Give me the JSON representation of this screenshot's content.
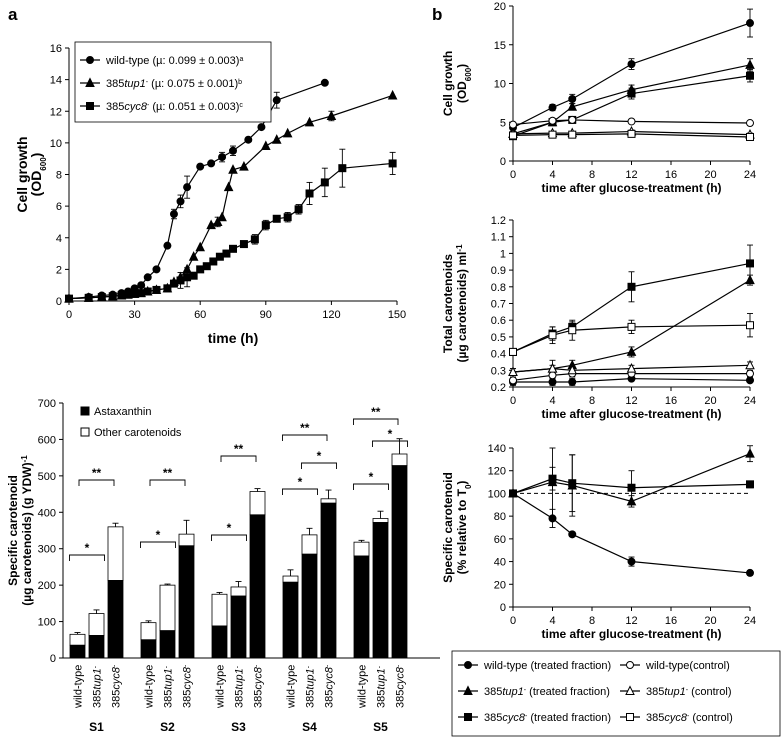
{
  "panel_labels": {
    "a": "a",
    "b": "b"
  },
  "chart_data": [
    {
      "id": "a_growth",
      "type": "line",
      "ylabel": "Cell growth",
      "ylabel2": "(OD600)",
      "xlabel": "time (h)",
      "xlim": [
        0,
        150
      ],
      "ylim": [
        0,
        16
      ],
      "xticks": [
        0,
        30,
        60,
        90,
        120,
        150
      ],
      "yticks": [
        0,
        2,
        4,
        6,
        8,
        10,
        12,
        14,
        16
      ],
      "series": [
        {
          "name": "wild-type",
          "legend": "wild-type (µ: 0.099 ± 0.003)",
          "sup": "a",
          "marker": "circle",
          "x": [
            0,
            9,
            15,
            20,
            24,
            27,
            30,
            33,
            36,
            40,
            45,
            48,
            51,
            54,
            60,
            65,
            70,
            75,
            82,
            88,
            95,
            117
          ],
          "y": [
            0.15,
            0.25,
            0.35,
            0.4,
            0.5,
            0.6,
            0.8,
            1.0,
            1.5,
            2.0,
            3.5,
            5.5,
            6.3,
            7.2,
            8.5,
            8.7,
            9.1,
            9.5,
            10.2,
            11.0,
            12.7,
            13.8
          ],
          "err": [
            0,
            0,
            0,
            0,
            0,
            0,
            0,
            0,
            0,
            0,
            0,
            0.3,
            0.4,
            0.7,
            0,
            0,
            0.3,
            0.3,
            0,
            0,
            0.5,
            0
          ]
        },
        {
          "name": "385tup1",
          "legend": "385tup1- (µ: 0.075 ± 0.001)",
          "sup": "b",
          "marker": "triangle",
          "x": [
            0,
            9,
            15,
            20,
            24,
            27,
            30,
            33,
            36,
            40,
            45,
            48,
            51,
            54,
            57,
            60,
            65,
            68,
            70,
            73,
            75,
            80,
            90,
            95,
            100,
            110,
            120,
            148
          ],
          "y": [
            0.15,
            0.2,
            0.25,
            0.3,
            0.35,
            0.4,
            0.45,
            0.5,
            0.6,
            0.7,
            0.8,
            1.2,
            1.5,
            2.0,
            2.8,
            3.4,
            4.8,
            5.0,
            5.3,
            7.2,
            8.3,
            8.5,
            9.8,
            10.2,
            10.6,
            11.3,
            11.7,
            13.0
          ],
          "err": [
            0,
            0,
            0,
            0,
            0,
            0,
            0,
            0,
            0,
            0,
            0,
            0,
            0,
            0,
            0,
            0,
            0,
            0.3,
            0,
            0,
            0,
            0,
            0,
            0,
            0,
            0,
            0.3,
            0
          ]
        },
        {
          "name": "385cyc8",
          "legend": "385cyc8- (µ: 0.051 ± 0.003)",
          "sup": "c",
          "marker": "square",
          "x": [
            0,
            9,
            15,
            20,
            24,
            27,
            30,
            33,
            36,
            40,
            45,
            48,
            51,
            54,
            57,
            60,
            63,
            66,
            69,
            72,
            75,
            80,
            85,
            90,
            95,
            100,
            105,
            110,
            117,
            125,
            148
          ],
          "y": [
            0.15,
            0.2,
            0.25,
            0.3,
            0.35,
            0.4,
            0.45,
            0.5,
            0.6,
            0.7,
            0.8,
            1.1,
            1.3,
            1.5,
            1.6,
            2.0,
            2.2,
            2.5,
            2.8,
            3.0,
            3.3,
            3.6,
            3.9,
            4.8,
            5.2,
            5.3,
            5.8,
            6.8,
            7.5,
            8.4,
            8.7
          ],
          "err": [
            0,
            0,
            0,
            0,
            0,
            0,
            0,
            0,
            0,
            0,
            0,
            0,
            0.5,
            0.6,
            0,
            0,
            0,
            0,
            0,
            0,
            0,
            0,
            0.3,
            0.3,
            0,
            0.3,
            0.3,
            0.7,
            0.9,
            1.2,
            0.7
          ]
        }
      ]
    },
    {
      "id": "a_carotenoid",
      "type": "bar",
      "stacked": true,
      "ylabel": "Specific carotenoid",
      "ylabel2": "(µg carotenoids) (g YDW)-1",
      "ylim": [
        0,
        700
      ],
      "yticks": [
        0,
        100,
        200,
        300,
        400,
        500,
        600,
        700
      ],
      "legend": [
        "Astaxanthin",
        "Other carotenoids"
      ],
      "strains": [
        "wild-type",
        "385tup1-",
        "385cyc8-"
      ],
      "groups": [
        {
          "label": "S1",
          "astaxanthin": [
            35,
            62,
            213
          ],
          "total": [
            65,
            122,
            360
          ],
          "err": [
            5,
            10,
            10
          ]
        },
        {
          "label": "S2",
          "astaxanthin": [
            50,
            75,
            308
          ],
          "total": [
            97,
            200,
            340
          ],
          "err": [
            5,
            3,
            38
          ]
        },
        {
          "label": "S3",
          "astaxanthin": [
            88,
            170,
            393
          ],
          "total": [
            175,
            195,
            457
          ],
          "err": [
            5,
            15,
            8
          ]
        },
        {
          "label": "S4",
          "astaxanthin": [
            208,
            285,
            425
          ],
          "total": [
            225,
            338,
            437
          ],
          "err": [
            17,
            18,
            24
          ]
        },
        {
          "label": "S5",
          "astaxanthin": [
            280,
            372,
            528
          ],
          "total": [
            318,
            383,
            560
          ],
          "err": [
            5,
            20,
            42
          ]
        }
      ],
      "significance": [
        "*",
        "**",
        "*",
        "**",
        "*",
        "**",
        "*",
        "*",
        "**",
        "*",
        "*",
        "**"
      ]
    },
    {
      "id": "b_growth",
      "type": "line",
      "ylabel": "Cell growth",
      "ylabel2": "(OD600)",
      "xlabel": "time after glucose-treatment (h)",
      "xlim": [
        0,
        24
      ],
      "ylim": [
        0,
        20
      ],
      "xticks": [
        0,
        4,
        8,
        12,
        16,
        20,
        24
      ],
      "yticks": [
        0,
        5,
        10,
        15,
        20
      ],
      "x": [
        0,
        4,
        6,
        12,
        24
      ],
      "series": [
        {
          "name": "wild-type (treated fraction)",
          "marker": "circle",
          "filled": true,
          "y": [
            4.3,
            6.9,
            8.0,
            12.5,
            17.8
          ],
          "err": [
            0.3,
            0.4,
            0.6,
            0.7,
            1.8
          ]
        },
        {
          "name": "385tup1- (treated fraction)",
          "marker": "triangle",
          "filled": true,
          "y": [
            3.5,
            5.0,
            7.0,
            9.2,
            12.4
          ],
          "err": [
            0.3,
            0.4,
            0.4,
            0.6,
            0.8
          ]
        },
        {
          "name": "385cyc8- (treated fraction)",
          "marker": "square",
          "filled": true,
          "y": [
            3.2,
            5.0,
            5.3,
            8.7,
            11.0
          ],
          "err": [
            0.3,
            0.4,
            0.4,
            0.7,
            0.8
          ]
        },
        {
          "name": "wild-type(control)",
          "marker": "circle",
          "filled": false,
          "y": [
            4.7,
            5.2,
            5.3,
            5.1,
            4.9
          ],
          "err": [
            0.2,
            0.2,
            0.2,
            0.2,
            0.2
          ]
        },
        {
          "name": "385tup1- (control)",
          "marker": "triangle",
          "filled": false,
          "y": [
            3.5,
            3.6,
            3.6,
            3.8,
            3.4
          ],
          "err": [
            0.2,
            0.2,
            0.2,
            0.2,
            0.2
          ]
        },
        {
          "name": "385cyc8- (control)",
          "marker": "square",
          "filled": false,
          "y": [
            3.3,
            3.4,
            3.4,
            3.5,
            3.1
          ],
          "err": [
            0.2,
            0.2,
            0.2,
            0.2,
            0.2
          ]
        }
      ]
    },
    {
      "id": "b_total",
      "type": "line",
      "ylabel": "Total carotenoids",
      "ylabel2": "(µg carotenoids) ml-1",
      "xlabel": "time after glucose-treatment (h)",
      "xlim": [
        0,
        24
      ],
      "ylim": [
        0.2,
        1.2
      ],
      "xticks": [
        0,
        4,
        8,
        12,
        16,
        20,
        24
      ],
      "yticks": [
        0.2,
        0.3,
        0.4,
        0.5,
        0.6,
        0.7,
        0.8,
        0.9,
        1.0,
        1.1,
        1.2
      ],
      "ytick_labels": [
        "0.2",
        "0.3",
        "0.4",
        "0.5",
        "0.6",
        "0.7",
        "0.8",
        "0.9",
        "1",
        "1.1",
        "1.2"
      ],
      "x": [
        0,
        4,
        6,
        12,
        24
      ],
      "series": [
        {
          "name": "wild-type (treated fraction)",
          "marker": "circle",
          "filled": true,
          "y": [
            0.23,
            0.23,
            0.23,
            0.25,
            0.24
          ],
          "err": [
            0.02,
            0.02,
            0.02,
            0.01,
            0.01
          ]
        },
        {
          "name": "385tup1- (treated fraction)",
          "marker": "triangle",
          "filled": true,
          "y": [
            0.29,
            0.31,
            0.33,
            0.41,
            0.84
          ],
          "err": [
            0.02,
            0.05,
            0.03,
            0.03,
            0.03
          ]
        },
        {
          "name": "385cyc8- (treated fraction)",
          "marker": "square",
          "filled": true,
          "y": [
            0.41,
            0.52,
            0.56,
            0.8,
            0.94
          ],
          "err": [
            0.02,
            0.04,
            0.03,
            0.09,
            0.11
          ]
        },
        {
          "name": "wild-type(control)",
          "marker": "circle",
          "filled": false,
          "y": [
            0.24,
            0.27,
            0.28,
            0.28,
            0.28
          ],
          "err": [
            0.02,
            0.02,
            0.02,
            0.02,
            0.02
          ]
        },
        {
          "name": "385tup1- (control)",
          "marker": "triangle",
          "filled": false,
          "y": [
            0.29,
            0.31,
            0.3,
            0.31,
            0.33
          ],
          "err": [
            0.02,
            0.02,
            0.02,
            0.02,
            0.02
          ]
        },
        {
          "name": "385cyc8- (control)",
          "marker": "square",
          "filled": false,
          "y": [
            0.41,
            0.51,
            0.54,
            0.56,
            0.57
          ],
          "err": [
            0.02,
            0.05,
            0.06,
            0.04,
            0.07
          ]
        }
      ]
    },
    {
      "id": "b_specific",
      "type": "line",
      "ylabel": "Specific carotenoid",
      "ylabel2": "(% relative to T0)",
      "xlabel": "time after glucose-treatment (h)",
      "xlim": [
        0,
        24
      ],
      "ylim": [
        0,
        140
      ],
      "xticks": [
        0,
        4,
        8,
        12,
        16,
        20,
        24
      ],
      "yticks": [
        0,
        20,
        40,
        60,
        80,
        100,
        120,
        140
      ],
      "reference_line": 100,
      "x": [
        0,
        4,
        6,
        12,
        24
      ],
      "series": [
        {
          "name": "wild-type (treated fraction)",
          "marker": "circle",
          "filled": true,
          "y": [
            100,
            78,
            64,
            40,
            30
          ],
          "err": [
            0,
            8,
            2,
            4,
            2
          ]
        },
        {
          "name": "385tup1- (treated fraction)",
          "marker": "triangle",
          "filled": true,
          "y": [
            100,
            110,
            107,
            93,
            135
          ],
          "err": [
            0,
            30,
            27,
            5,
            7
          ]
        },
        {
          "name": "385cyc8- (treated fraction)",
          "marker": "square",
          "filled": true,
          "y": [
            100,
            113,
            109,
            105,
            108
          ],
          "err": [
            0,
            10,
            25,
            15,
            3
          ]
        }
      ]
    }
  ],
  "legend_b": [
    {
      "name": "wild-type",
      "suffix": "  (treated fraction)",
      "marker": "circle",
      "filled": true
    },
    {
      "name": "wild-type",
      "suffix": "(control)",
      "marker": "circle",
      "filled": false
    },
    {
      "name": "385",
      "italic": "tup1",
      "sup": "-",
      "suffix": " (treated fraction)",
      "marker": "triangle",
      "filled": true
    },
    {
      "name": "385",
      "italic": "tup1",
      "sup": "-",
      "suffix": " (control)",
      "marker": "triangle",
      "filled": false
    },
    {
      "name": "385",
      "italic": "cyc8",
      "sup": "-",
      "suffix": " (treated fraction)",
      "marker": "square",
      "filled": true
    },
    {
      "name": "385",
      "italic": "cyc8",
      "sup": "-",
      "suffix": " (control)",
      "marker": "square",
      "filled": false
    }
  ]
}
